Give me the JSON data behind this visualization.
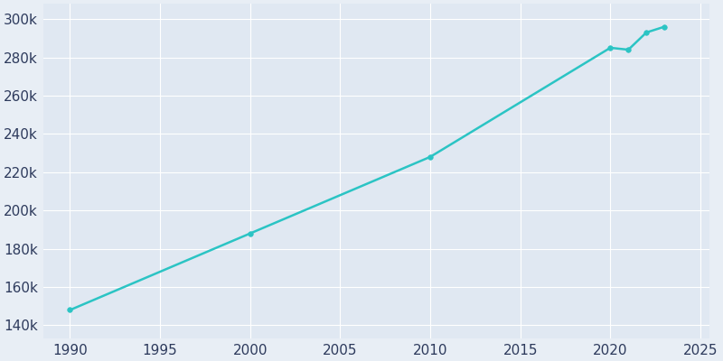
{
  "years": [
    1990,
    2000,
    2010,
    2020,
    2021,
    2022,
    2023
  ],
  "population": [
    148000,
    188000,
    228000,
    285000,
    284000,
    293000,
    296000
  ],
  "line_color": "#2BC4C4",
  "line_width": 1.8,
  "marker": "o",
  "marker_size": 4,
  "bg_color": "#E8EEF5",
  "plot_bg_color": "#E0E8F2",
  "grid_color": "#FFFFFF",
  "tick_color": "#2D3A5C",
  "tick_fontsize": 11,
  "xlim": [
    1988.5,
    2025.5
  ],
  "ylim": [
    133000,
    308000
  ],
  "xticks": [
    1990,
    1995,
    2000,
    2005,
    2010,
    2015,
    2020,
    2025
  ],
  "yticks": [
    140000,
    160000,
    180000,
    200000,
    220000,
    240000,
    260000,
    280000,
    300000
  ]
}
